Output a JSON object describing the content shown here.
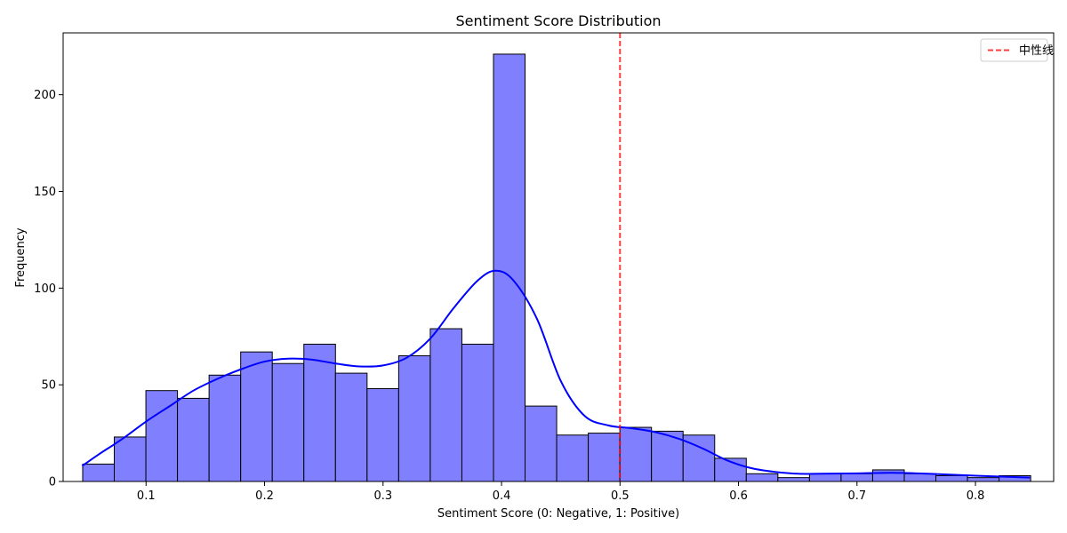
{
  "chart_data": {
    "type": "bar",
    "title": "Sentiment Score Distribution",
    "xlabel": "Sentiment Score (0: Negative, 1: Positive)",
    "ylabel": "Frequency",
    "xlim": [
      0.03,
      0.866
    ],
    "ylim": [
      0,
      232
    ],
    "xticks": [
      "0.1",
      "0.2",
      "0.3",
      "0.4",
      "0.5",
      "0.6",
      "0.7",
      "0.8"
    ],
    "yticks": [
      "0",
      "50",
      "100",
      "150",
      "200"
    ],
    "bin_start": 0.0465,
    "bin_width": 0.02667,
    "values": [
      9,
      23,
      47,
      43,
      55,
      67,
      61,
      71,
      56,
      48,
      65,
      79,
      71,
      221,
      39,
      24,
      25,
      28,
      26,
      24,
      12,
      4,
      2,
      4,
      4,
      6,
      4,
      3,
      2,
      3
    ],
    "bar_color": "#8080ff",
    "bar_edge_color": "#000000",
    "kde": {
      "color": "#0000ff",
      "x": [
        0.046,
        0.06,
        0.08,
        0.1,
        0.12,
        0.14,
        0.16,
        0.18,
        0.2,
        0.22,
        0.24,
        0.26,
        0.28,
        0.3,
        0.32,
        0.34,
        0.36,
        0.38,
        0.395,
        0.41,
        0.43,
        0.45,
        0.47,
        0.49,
        0.51,
        0.53,
        0.55,
        0.57,
        0.59,
        0.61,
        0.63,
        0.65,
        0.67,
        0.7,
        0.73,
        0.76,
        0.8,
        0.846
      ],
      "y": [
        8,
        14,
        22,
        31,
        39,
        47,
        53,
        58,
        62,
        63.5,
        63,
        61,
        59.5,
        60,
        64,
        74,
        90,
        104,
        109,
        104,
        84,
        52,
        34,
        29,
        27.5,
        25.5,
        22,
        17,
        11,
        7,
        5,
        4,
        4,
        4.2,
        4.5,
        4,
        3,
        2
      ]
    },
    "reference_line": {
      "x": 0.5,
      "color": "#ff0000",
      "label": "中性线"
    },
    "legend_position": "top-right",
    "grid": false
  }
}
